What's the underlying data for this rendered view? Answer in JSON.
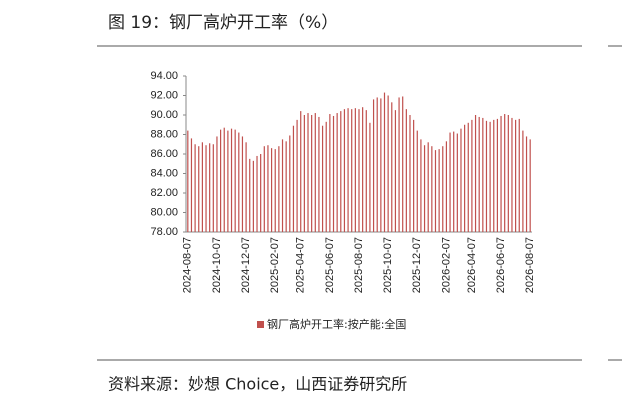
{
  "header": {
    "title": "图 19：钢厂高炉开工率（%）"
  },
  "footer": {
    "source": "资料来源：妙想 Choice，山西证券研究所"
  },
  "chart_data": {
    "type": "bar",
    "categories": [
      "2024-08-07",
      null,
      null,
      null,
      null,
      null,
      null,
      null,
      "2024-10-07",
      null,
      null,
      null,
      null,
      null,
      null,
      null,
      "2024-12-07",
      null,
      null,
      null,
      null,
      null,
      null,
      null,
      "2025-02-07",
      null,
      null,
      null,
      null,
      null,
      null,
      "2025-04-07",
      null,
      null,
      null,
      null,
      null,
      null,
      null,
      "2025-06-07",
      null,
      null,
      null,
      null,
      null,
      null,
      null,
      "2025-08-07",
      null,
      null,
      null,
      null,
      null,
      null,
      null,
      "2025-10-07",
      null,
      null,
      null,
      null,
      null,
      null,
      null,
      "2025-12-07",
      null,
      null,
      null,
      null,
      null,
      null,
      null,
      "2026-02-07",
      null,
      null,
      null,
      null,
      null,
      null,
      "2026-04-07",
      null,
      null,
      null,
      null,
      null,
      null,
      null,
      "2026-06-07",
      null,
      null,
      null,
      null,
      null,
      null,
      null,
      "2026-08-07"
    ],
    "series": [
      {
        "name": "钢厂高炉开工率:按产能:全国",
        "color": "#c0504d",
        "values": [
          88.4,
          87.6,
          87.0,
          86.8,
          87.2,
          86.9,
          87.1,
          87.0,
          87.8,
          88.5,
          88.7,
          88.4,
          88.6,
          88.5,
          88.2,
          87.8,
          87.2,
          85.5,
          85.3,
          85.8,
          86.0,
          86.8,
          86.9,
          86.6,
          86.5,
          86.8,
          87.5,
          87.3,
          87.9,
          88.9,
          89.5,
          90.4,
          90.0,
          90.2,
          90.0,
          90.2,
          89.8,
          88.9,
          89.3,
          90.1,
          89.9,
          90.2,
          90.4,
          90.6,
          90.7,
          90.6,
          90.7,
          90.6,
          90.8,
          90.5,
          89.2,
          91.6,
          91.8,
          91.7,
          92.3,
          92.0,
          91.3,
          90.5,
          91.8,
          91.9,
          90.6,
          90.0,
          89.5,
          88.4,
          87.5,
          86.9,
          87.2,
          86.8,
          86.4,
          86.5,
          86.8,
          87.3,
          88.2,
          88.3,
          88.1,
          88.6,
          89.0,
          89.2,
          89.5,
          90.0,
          89.8,
          89.7,
          89.4,
          89.3,
          89.5,
          89.6,
          89.9,
          90.1,
          90.0,
          89.7,
          89.5,
          89.6,
          88.4,
          87.8,
          87.5
        ]
      }
    ],
    "ylim": [
      78,
      94
    ],
    "yticks": [
      {
        "value": 78,
        "label": "78.00"
      },
      {
        "value": 80,
        "label": "80.00"
      },
      {
        "value": 82,
        "label": "82.00"
      },
      {
        "value": 84,
        "label": "84.00"
      },
      {
        "value": 86,
        "label": "86.00"
      },
      {
        "value": 88,
        "label": "88.00"
      },
      {
        "value": 90,
        "label": "90.00"
      },
      {
        "value": 92,
        "label": "92.00"
      },
      {
        "value": 94,
        "label": "94.00"
      }
    ],
    "legend": "bottom"
  }
}
